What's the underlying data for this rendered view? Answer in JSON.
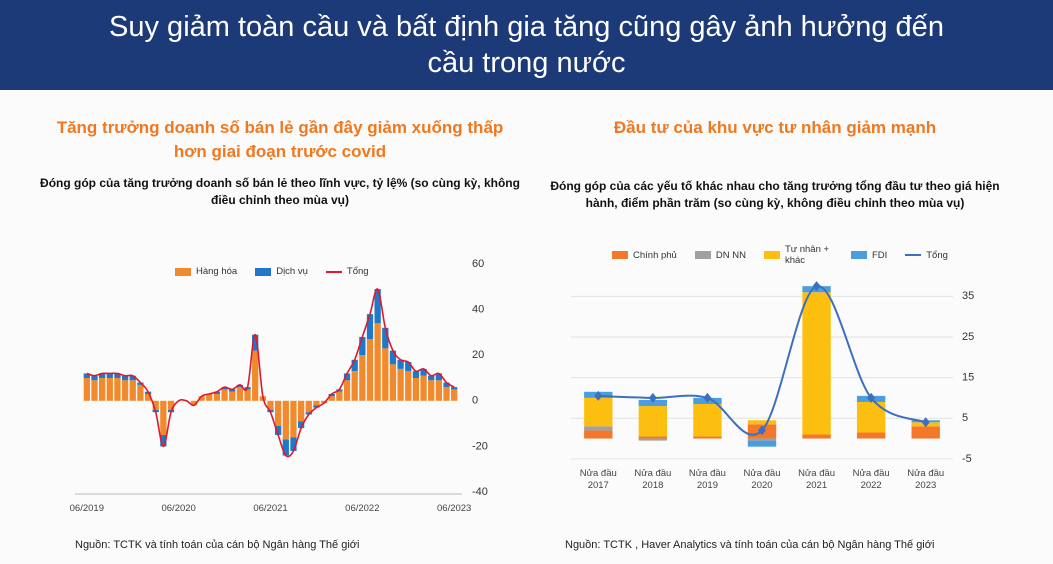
{
  "header": {
    "title": "Suy giảm toàn cầu và bất định gia tăng cũng gây ảnh hưởng đến cầu trong nước"
  },
  "chart_data": [
    {
      "type": "bar",
      "stacked": true,
      "smooth": true,
      "grid": false,
      "title": "Tăng trưởng doanh số bán lẻ gần đây giảm xuống thấp hơn giai đoạn trước covid",
      "subtitle": "Đóng góp của tăng trưởng doanh số bán lẻ theo lĩnh vực, tỷ lệ% (so cùng kỳ, không điều chỉnh theo mùa vụ)",
      "source": "Nguồn: TCTK và tính toán của cán bộ Ngân hàng Thế giới",
      "legend": "top",
      "categories": [
        "06/2019",
        null,
        null,
        null,
        null,
        null,
        null,
        null,
        null,
        null,
        null,
        null,
        "06/2020",
        null,
        null,
        null,
        null,
        null,
        null,
        null,
        null,
        null,
        null,
        null,
        "06/2021",
        null,
        null,
        null,
        null,
        null,
        null,
        null,
        null,
        null,
        null,
        null,
        "06/2022",
        null,
        null,
        null,
        null,
        null,
        null,
        null,
        null,
        null,
        null,
        null,
        "06/2023"
      ],
      "series": [
        {
          "name": "Hàng hóa",
          "color": "#f08a2c",
          "values": [
            10,
            9,
            10,
            10,
            10,
            9,
            9,
            7,
            3,
            -4,
            -15,
            -4,
            0,
            0,
            -2,
            2,
            3,
            3,
            5,
            4,
            6,
            5,
            22,
            2,
            -4,
            -11,
            -17,
            -16,
            -9,
            -5,
            -2,
            -1,
            2,
            4,
            9,
            13,
            20,
            27,
            34,
            23,
            16,
            14,
            13,
            10,
            11,
            9,
            9,
            6,
            5
          ]
        },
        {
          "name": "Dịch vụ",
          "color": "#1f78c8",
          "values": [
            2,
            2,
            2,
            2,
            2,
            2,
            2,
            1,
            1,
            -1,
            -5,
            -1,
            0,
            0,
            0,
            0,
            0,
            1,
            1,
            1,
            1,
            1,
            7,
            0,
            -1,
            -4,
            -7,
            -6,
            -3,
            -1,
            -1,
            0,
            1,
            1,
            3,
            5,
            8,
            11,
            15,
            9,
            6,
            4,
            4,
            3,
            3,
            2,
            3,
            2,
            1
          ]
        },
        {
          "name": "Tổng",
          "type": "line",
          "color": "#e0182d",
          "values": [
            12,
            11,
            12,
            12,
            12,
            11,
            11,
            8,
            4,
            -5,
            -20,
            -5,
            0,
            0,
            -2,
            2,
            3,
            4,
            6,
            5,
            7,
            6,
            29,
            2,
            -5,
            -15,
            -24,
            -22,
            -12,
            -6,
            -3,
            -1,
            3,
            5,
            12,
            18,
            28,
            38,
            49,
            32,
            22,
            18,
            17,
            13,
            14,
            11,
            12,
            8,
            6
          ]
        }
      ],
      "ylim": [
        -40,
        60
      ],
      "yticks": [
        -40,
        -20,
        0,
        20,
        40,
        60
      ]
    },
    {
      "type": "bar",
      "stacked": true,
      "smooth": true,
      "markers": true,
      "grid": true,
      "title": "Đầu tư của khu vực tư nhân giảm mạnh",
      "subtitle": "Đóng góp của các yếu tố khác nhau cho tăng trưởng tổng đầu tư theo giá hiện hành, điểm phần trăm (so cùng kỳ, không điều chỉnh theo mùa vụ)",
      "source": "Nguồn: TCTK , Haver Analytics và tính toán của cán bộ Ngân hàng Thế giới",
      "legend": "top",
      "categories": [
        "Nửa đầu 2017",
        "Nửa đầu 2018",
        "Nửa đầu 2019",
        "Nửa đầu 2020",
        "Nửa đầu 2021",
        "Nửa đầu 2022",
        "Nửa đầu 2023"
      ],
      "series": [
        {
          "name": "Chính phủ",
          "color": "#f4782a",
          "values": [
            2,
            0.5,
            0.5,
            3.5,
            1,
            1.5,
            3
          ]
        },
        {
          "name": "DN NN",
          "color": "#a0a0a0",
          "values": [
            1,
            -0.5,
            0,
            -0.5,
            0,
            0,
            0
          ]
        },
        {
          "name": "Tư nhân + khác",
          "color": "#fdbf0f",
          "values": [
            7,
            7.5,
            8,
            1,
            35,
            7.5,
            1
          ]
        },
        {
          "name": "FDI",
          "color": "#4a9ee0",
          "values": [
            1.5,
            1.5,
            1.5,
            -1.5,
            1.5,
            1.5,
            0.5
          ]
        },
        {
          "name": "Tổng",
          "type": "line",
          "color": "#3d6fc0",
          "values": [
            10.5,
            10,
            10,
            2,
            37.5,
            10,
            4
          ]
        }
      ],
      "ylim": [
        -7,
        40
      ],
      "yticks": [
        -5,
        5,
        15,
        25,
        35
      ]
    }
  ]
}
